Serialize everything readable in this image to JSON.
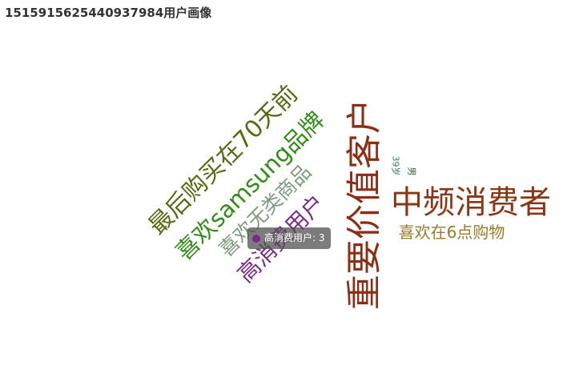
{
  "title": "1515915625440937984用户画像",
  "chart_data": {
    "type": "wordcloud",
    "words": [
      {
        "text": "重要价值客户",
        "color": "#8c2d14"
      },
      {
        "text": "中频消费者",
        "color": "#8c3616"
      },
      {
        "text": "最后购买在70天前",
        "color": "#5a6a14"
      },
      {
        "text": "喜欢samsung品牌",
        "color": "#2f8e14"
      },
      {
        "text": "喜欢无类商品",
        "color": "#7f9a7f"
      },
      {
        "text": "高消费用户",
        "color": "#7b2a8a"
      },
      {
        "text": "喜欢在6点购物",
        "color": "#9a7a24"
      },
      {
        "text": "39岁",
        "color": "#2e7a5a"
      },
      {
        "text": "男",
        "color": "#2e6a3a"
      }
    ]
  },
  "tooltip": {
    "text": "高消费用户: 3",
    "color": "#7b2a8a"
  }
}
